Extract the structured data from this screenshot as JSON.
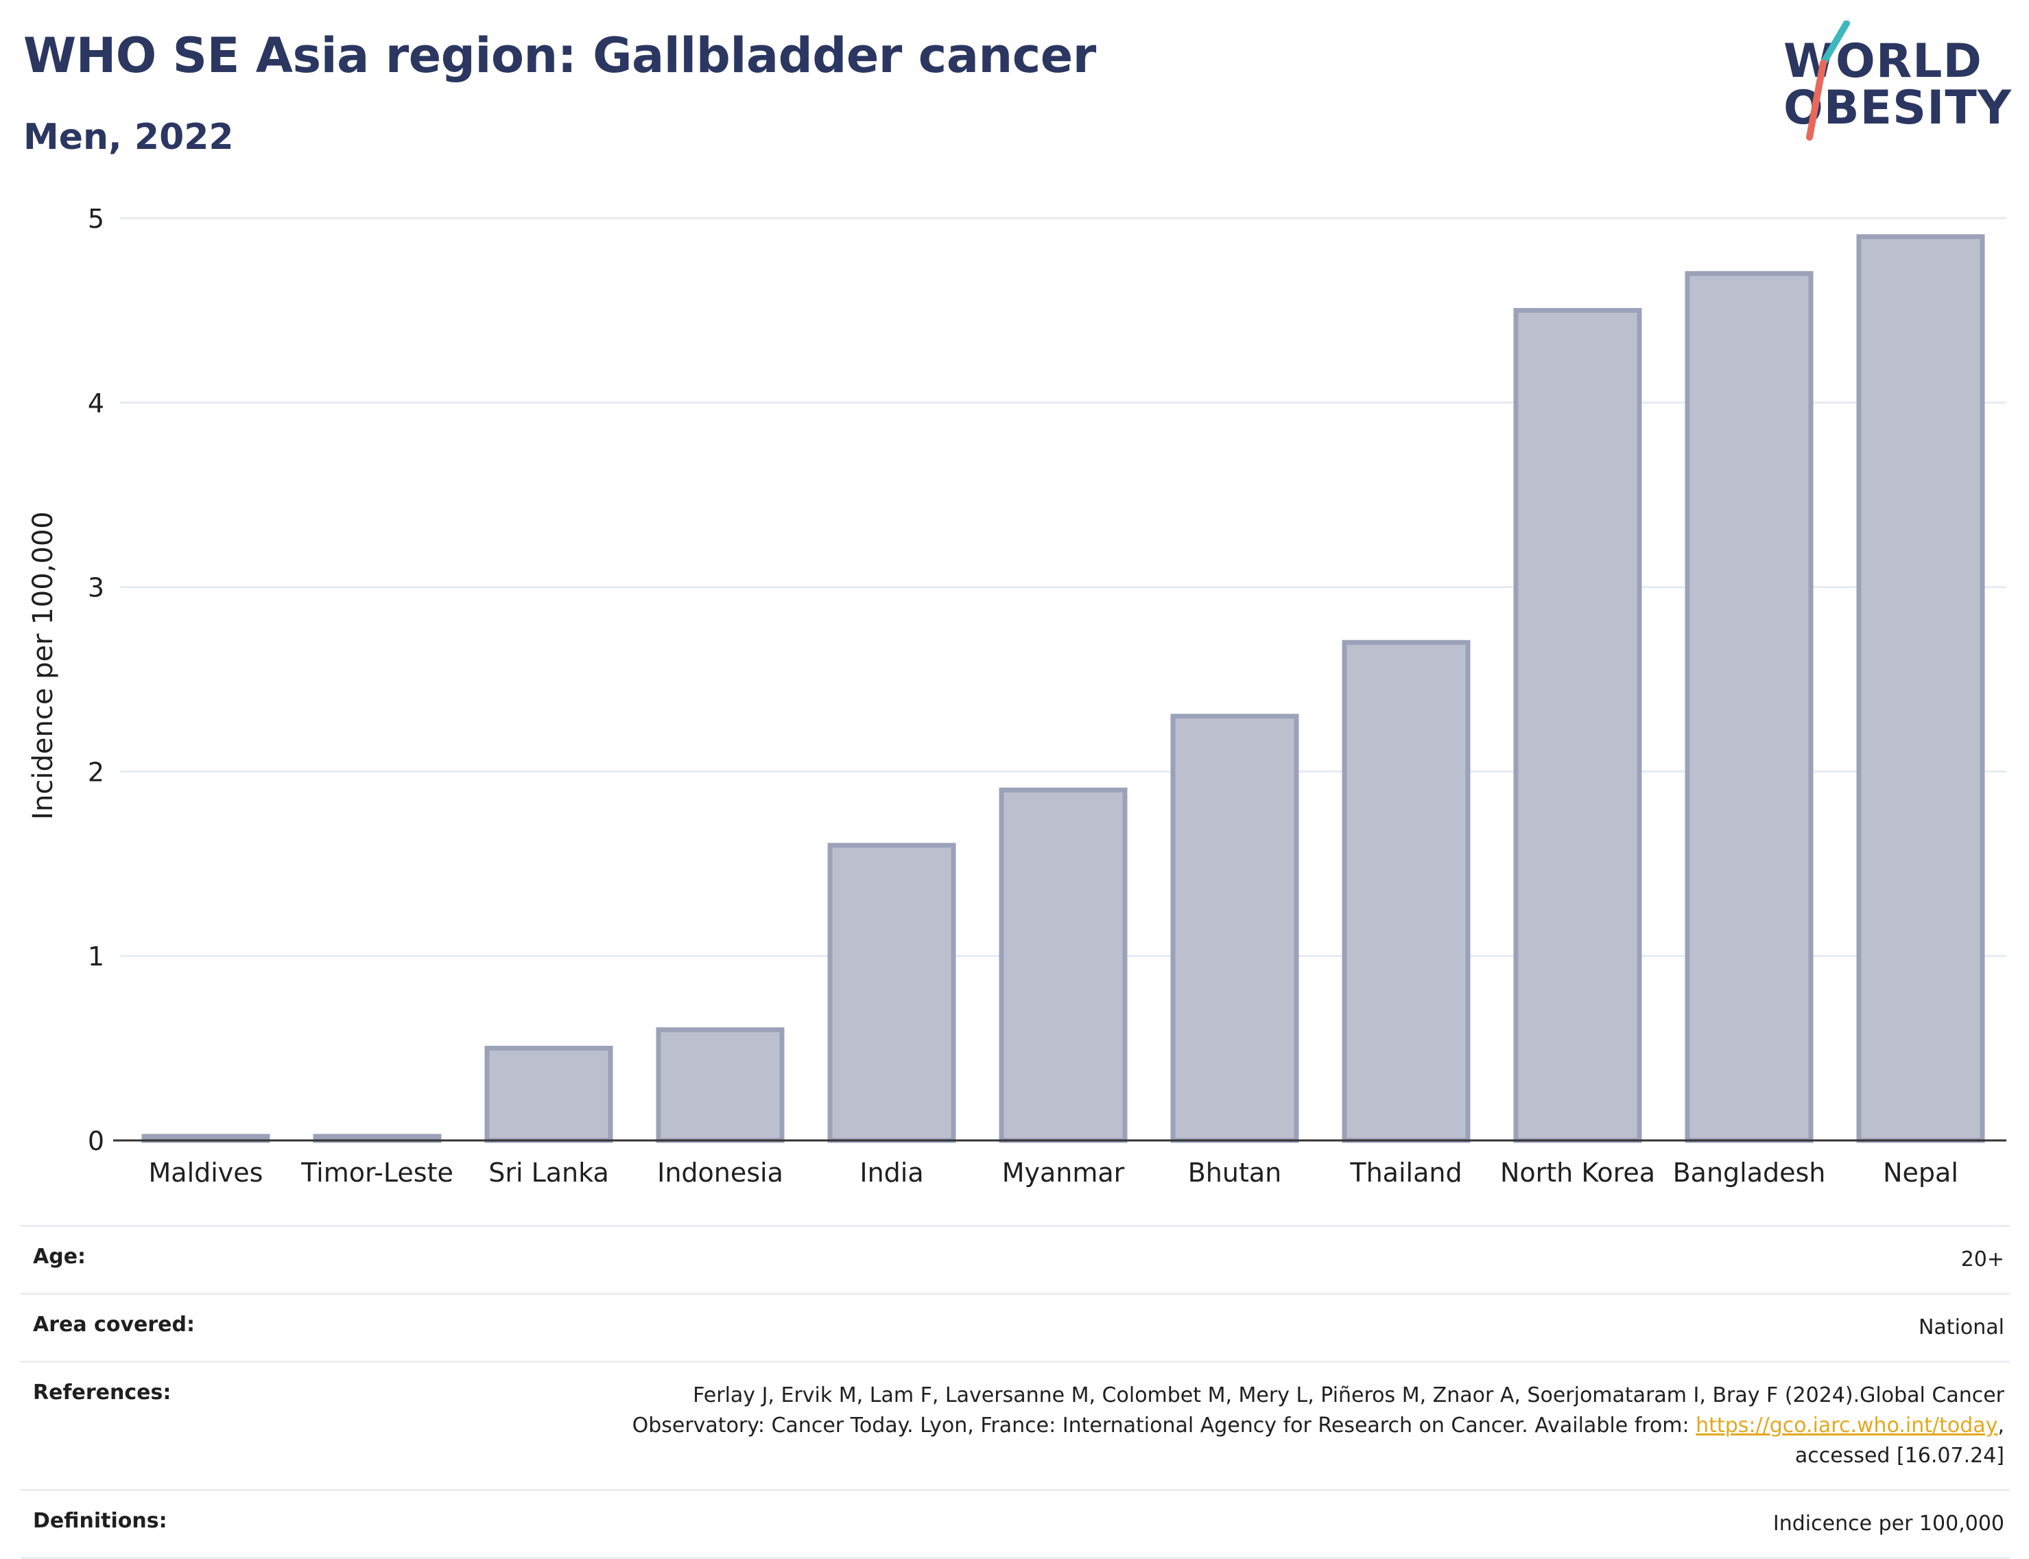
{
  "title": "WHO SE Asia region: Gallbladder cancer",
  "subtitle": "Men, 2022",
  "logo": {
    "line1": "WORLD",
    "line2": "OBESITY",
    "slash_colors": [
      "#3cb8be",
      "#e8695a"
    ]
  },
  "colors": {
    "bar_fill": "#bcc0ce",
    "bar_stroke": "#9ba1b8",
    "text": "#2b3761",
    "grid": "#e6ebf2",
    "axis": "#333333"
  },
  "chart_data": {
    "type": "bar",
    "title": "WHO SE Asia region: Gallbladder cancer",
    "subtitle": "Men, 2022",
    "categories": [
      "Maldives",
      "Timor-Leste",
      "Sri Lanka",
      "Indonesia",
      "India",
      "Myanmar",
      "Bhutan",
      "Thailand",
      "North Korea",
      "Bangladesh",
      "Nepal"
    ],
    "values": [
      0.0,
      0.0,
      0.5,
      0.6,
      1.6,
      1.9,
      2.3,
      2.7,
      4.5,
      4.7,
      4.9
    ],
    "xlabel": "",
    "ylabel": "Incidence per 100,000",
    "ylim": [
      0,
      5
    ],
    "yticks": [
      0,
      1,
      2,
      3,
      4,
      5
    ],
    "grid": true,
    "legend": "none"
  },
  "meta": {
    "age_label": "Age:",
    "age_value": "20+",
    "area_label": "Area covered:",
    "area_value": "National",
    "references_label": "References:",
    "references_line1": "Ferlay J, Ervik M, Lam F, Laversanne M, Colombet M, Mery L, Piñeros M, Znaor A, Soerjomataram I, Bray F (2024).Global Cancer",
    "references_line2_pre": "Observatory: Cancer Today. Lyon, France: International Agency for Research on Cancer. Available from: ",
    "references_link": "https://gco.iarc.who.int/today",
    "references_line2_post": ",",
    "references_line3": "accessed [16.07.24]",
    "definitions_label": "Definitions:",
    "definitions_value": "Indicence per 100,000"
  }
}
